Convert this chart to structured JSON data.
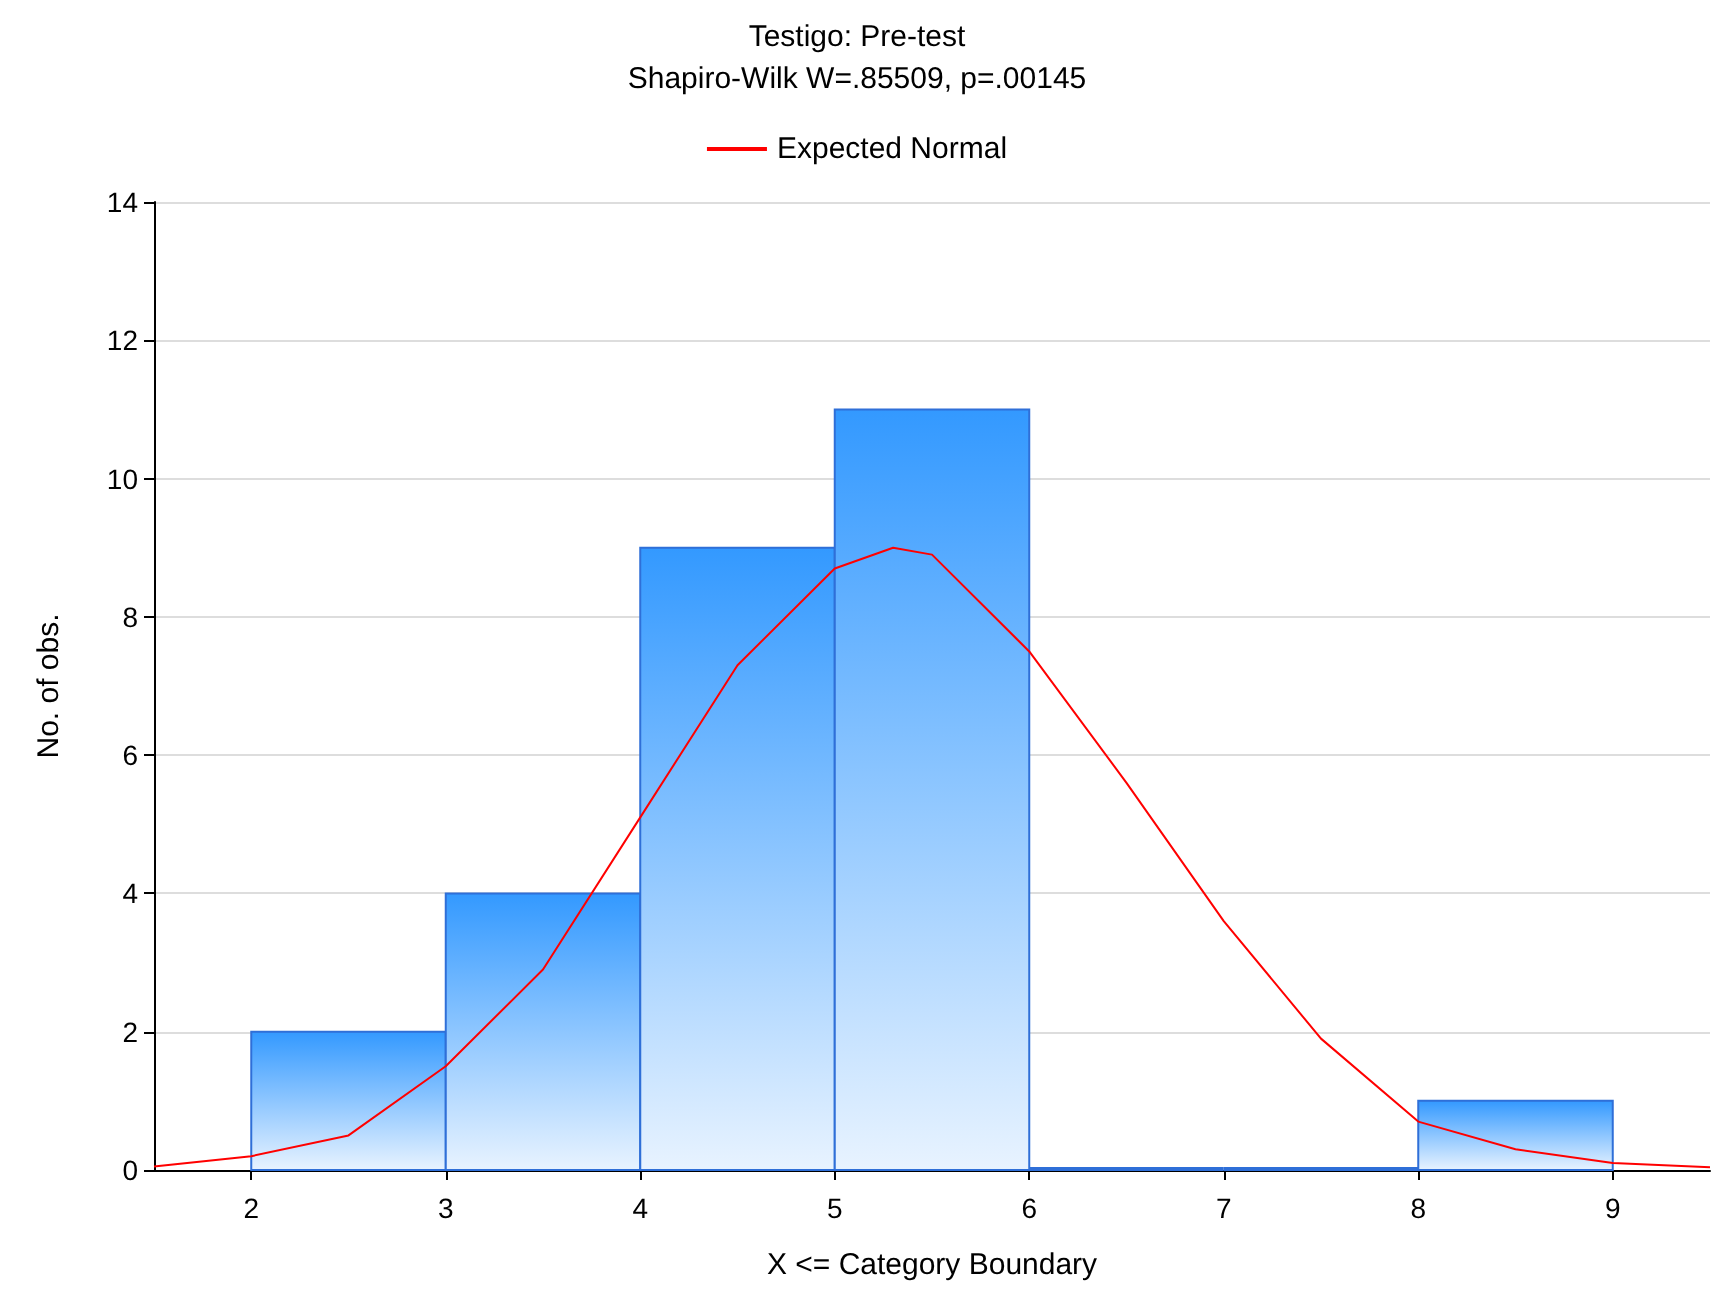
{
  "chart_data": {
    "type": "histogram",
    "title": "Testigo: Pre-test",
    "subtitle": "Shapiro-Wilk W=.85509, p=.00145",
    "xlabel": "X <= Category Boundary",
    "ylabel": "No. of obs.",
    "series": [
      {
        "color": "#2f6fd8",
        "bins": [
          2,
          3,
          4,
          5,
          6,
          7,
          8,
          9
        ],
        "values": [
          2,
          4,
          9,
          11,
          0,
          0,
          1
        ]
      },
      {
        "type": "line",
        "name": "Expected Normal",
        "color": "#ff0000",
        "x": [
          1.5,
          2,
          2.5,
          3,
          3.5,
          4,
          4.5,
          5,
          5.3,
          5.5,
          6,
          6.5,
          7,
          7.5,
          8,
          8.5,
          9,
          9.5
        ],
        "values": [
          0.05,
          0.2,
          0.5,
          1.5,
          2.9,
          5.1,
          7.3,
          8.7,
          9.0,
          8.9,
          7.5,
          5.6,
          3.6,
          1.9,
          0.7,
          0.3,
          0.1,
          0.04
        ]
      }
    ],
    "xlim": [
      1.5,
      9.5
    ],
    "xticks": [
      2,
      3,
      4,
      5,
      6,
      7,
      8,
      9
    ],
    "ylim": [
      0,
      14
    ],
    "yticks": [
      0,
      2,
      4,
      6,
      8,
      10,
      12,
      14
    ],
    "grid": "y",
    "legend": "top"
  }
}
